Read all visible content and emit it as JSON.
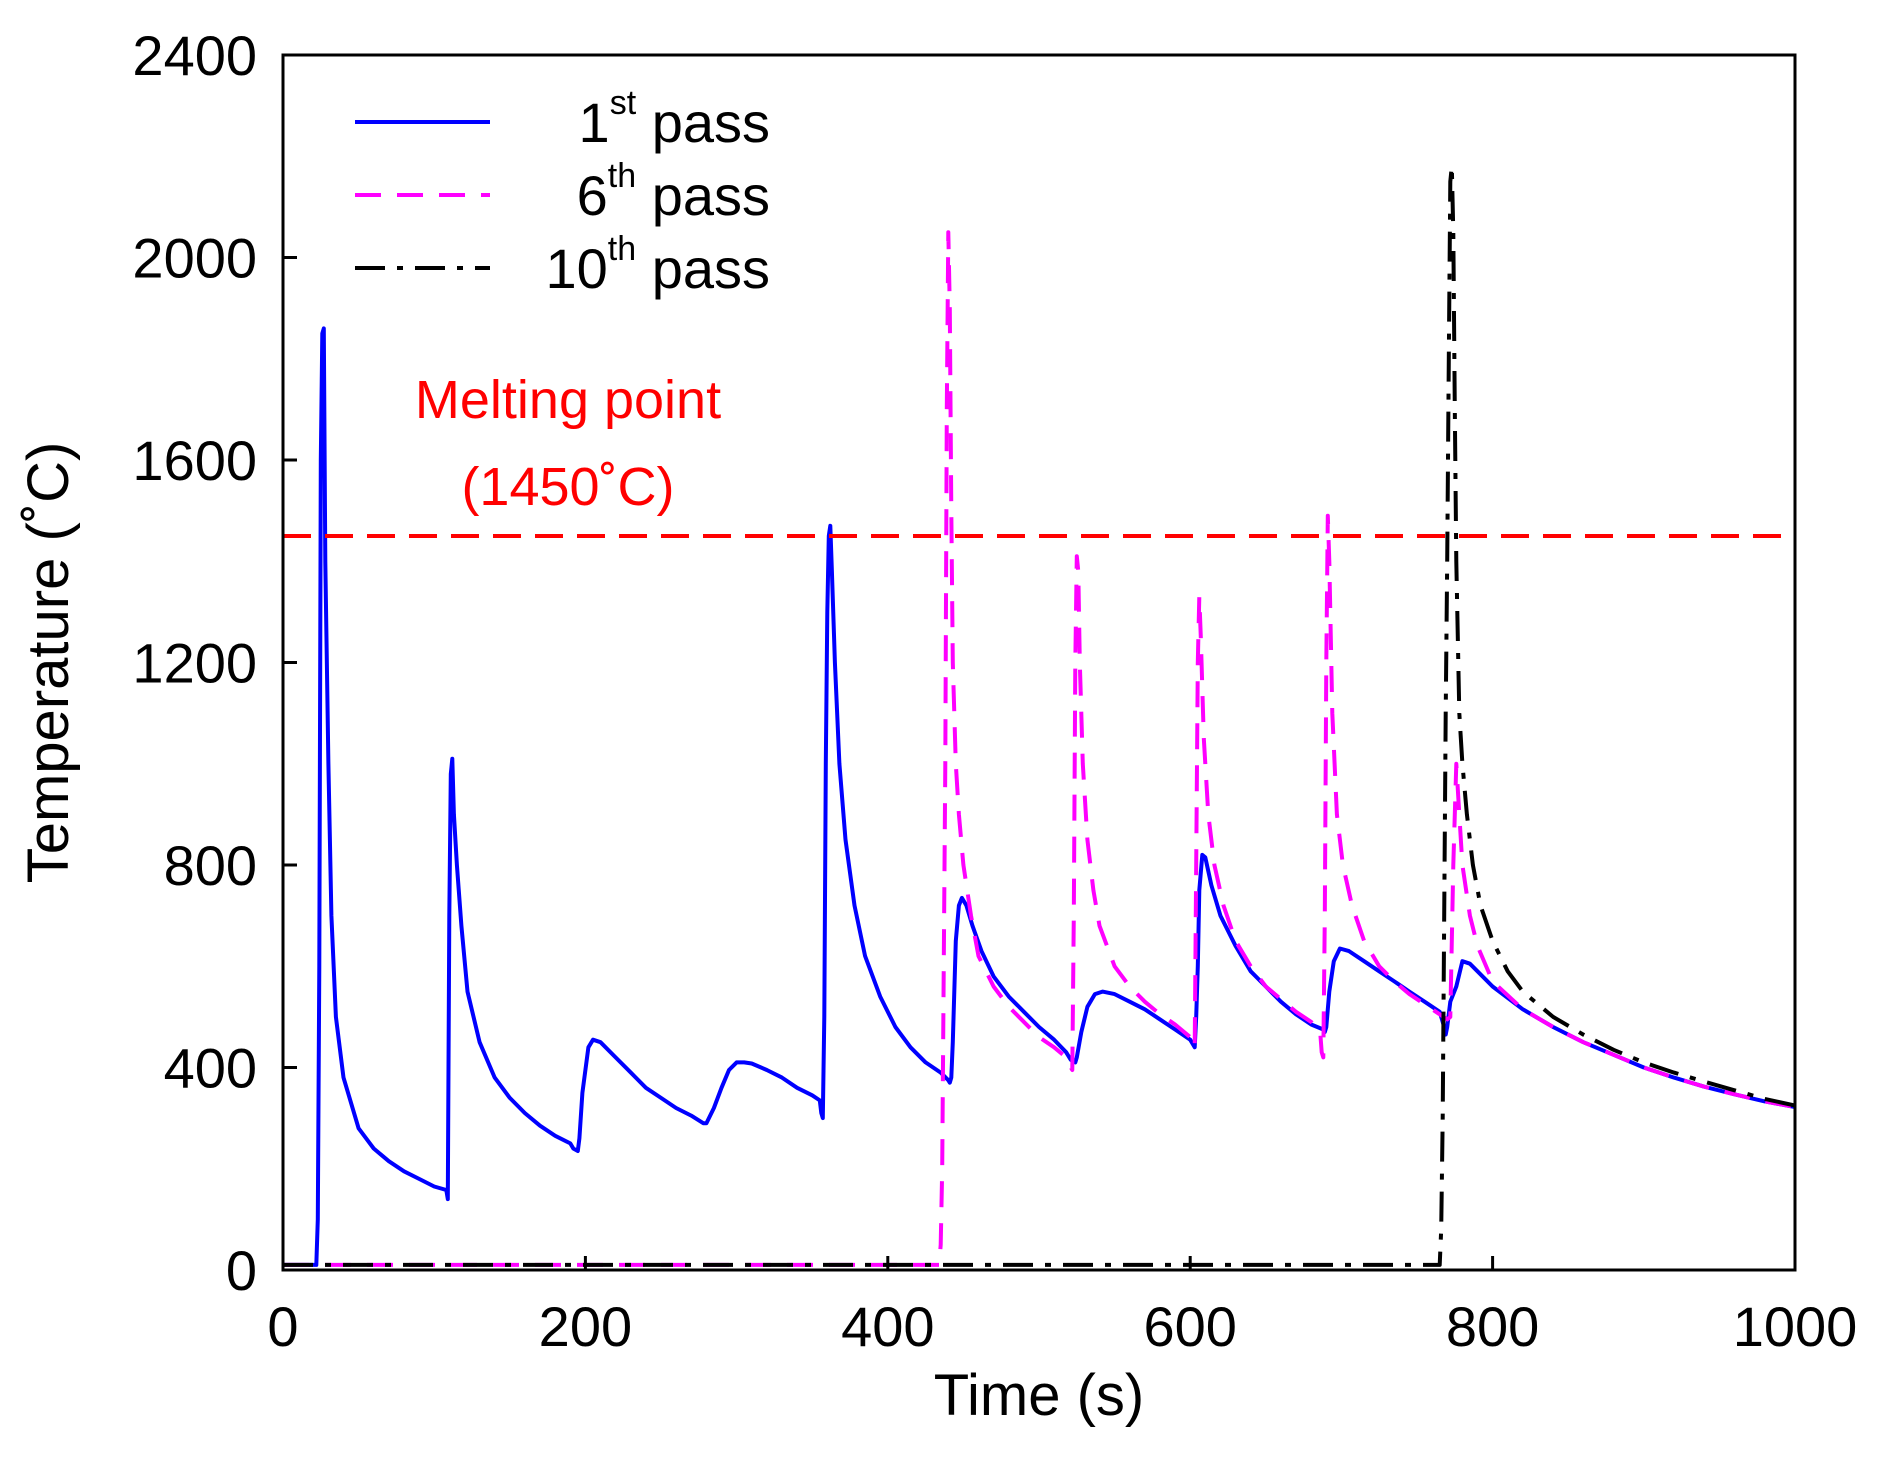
{
  "chart_data": {
    "type": "line",
    "title": "",
    "xlabel": "Time (s)",
    "ylabel": "Temperature (˚C)",
    "xlim": [
      0,
      1000
    ],
    "ylim": [
      0,
      2400
    ],
    "x_ticks": [
      0,
      200,
      400,
      600,
      800,
      1000
    ],
    "y_ticks": [
      0,
      400,
      800,
      1200,
      1600,
      2000,
      2400
    ],
    "grid": false,
    "legend_position": "top-left",
    "reference_line": {
      "y": 1450,
      "color": "#ff0000",
      "style": "dashed",
      "label_line1": "Melting point",
      "label_line2": "(1450˚C)"
    },
    "series": [
      {
        "name_base": "1",
        "name_sup": "st",
        "name_tail": " pass",
        "color": "#0000ff",
        "style": "solid",
        "points": [
          [
            0,
            10
          ],
          [
            22,
            10
          ],
          [
            23,
            100
          ],
          [
            24,
            600
          ],
          [
            25,
            1600
          ],
          [
            26,
            1850
          ],
          [
            27,
            1860
          ],
          [
            28,
            1400
          ],
          [
            30,
            1000
          ],
          [
            32,
            700
          ],
          [
            35,
            500
          ],
          [
            40,
            380
          ],
          [
            50,
            280
          ],
          [
            60,
            240
          ],
          [
            70,
            215
          ],
          [
            80,
            195
          ],
          [
            90,
            180
          ],
          [
            100,
            165
          ],
          [
            108,
            158
          ],
          [
            109,
            140
          ],
          [
            110,
            700
          ],
          [
            111,
            980
          ],
          [
            112,
            1010
          ],
          [
            113,
            900
          ],
          [
            115,
            800
          ],
          [
            118,
            680
          ],
          [
            122,
            550
          ],
          [
            130,
            450
          ],
          [
            140,
            380
          ],
          [
            150,
            340
          ],
          [
            160,
            310
          ],
          [
            170,
            285
          ],
          [
            180,
            265
          ],
          [
            190,
            250
          ],
          [
            192,
            240
          ],
          [
            195,
            235
          ],
          [
            196,
            260
          ],
          [
            198,
            350
          ],
          [
            202,
            440
          ],
          [
            205,
            455
          ],
          [
            210,
            450
          ],
          [
            220,
            420
          ],
          [
            230,
            390
          ],
          [
            240,
            360
          ],
          [
            250,
            340
          ],
          [
            260,
            320
          ],
          [
            270,
            305
          ],
          [
            278,
            290
          ],
          [
            280,
            290
          ],
          [
            285,
            320
          ],
          [
            290,
            360
          ],
          [
            295,
            395
          ],
          [
            300,
            410
          ],
          [
            305,
            410
          ],
          [
            310,
            408
          ],
          [
            320,
            395
          ],
          [
            330,
            380
          ],
          [
            340,
            360
          ],
          [
            350,
            345
          ],
          [
            355,
            335
          ],
          [
            356,
            310
          ],
          [
            357,
            300
          ],
          [
            358,
            500
          ],
          [
            359,
            1000
          ],
          [
            360,
            1300
          ],
          [
            361,
            1450
          ],
          [
            362,
            1470
          ],
          [
            363,
            1380
          ],
          [
            365,
            1200
          ],
          [
            368,
            1000
          ],
          [
            372,
            850
          ],
          [
            378,
            720
          ],
          [
            385,
            620
          ],
          [
            395,
            540
          ],
          [
            405,
            480
          ],
          [
            415,
            440
          ],
          [
            425,
            410
          ],
          [
            435,
            390
          ],
          [
            440,
            375
          ],
          [
            441,
            370
          ],
          [
            442,
            380
          ],
          [
            443,
            450
          ],
          [
            445,
            650
          ],
          [
            447,
            720
          ],
          [
            449,
            735
          ],
          [
            452,
            720
          ],
          [
            456,
            680
          ],
          [
            462,
            630
          ],
          [
            470,
            580
          ],
          [
            480,
            540
          ],
          [
            490,
            510
          ],
          [
            500,
            480
          ],
          [
            510,
            455
          ],
          [
            518,
            430
          ],
          [
            521,
            415
          ],
          [
            524,
            410
          ],
          [
            525,
            420
          ],
          [
            528,
            470
          ],
          [
            532,
            520
          ],
          [
            537,
            545
          ],
          [
            542,
            550
          ],
          [
            550,
            545
          ],
          [
            560,
            530
          ],
          [
            570,
            515
          ],
          [
            580,
            495
          ],
          [
            590,
            475
          ],
          [
            600,
            455
          ],
          [
            602,
            445
          ],
          [
            603,
            440
          ],
          [
            604,
            500
          ],
          [
            605,
            600
          ],
          [
            606,
            750
          ],
          [
            608,
            820
          ],
          [
            610,
            815
          ],
          [
            614,
            760
          ],
          [
            620,
            700
          ],
          [
            630,
            640
          ],
          [
            640,
            590
          ],
          [
            650,
            560
          ],
          [
            660,
            530
          ],
          [
            670,
            505
          ],
          [
            680,
            485
          ],
          [
            688,
            475
          ],
          [
            689,
            470
          ],
          [
            690,
            480
          ],
          [
            692,
            550
          ],
          [
            695,
            610
          ],
          [
            699,
            635
          ],
          [
            705,
            630
          ],
          [
            715,
            610
          ],
          [
            725,
            590
          ],
          [
            735,
            570
          ],
          [
            745,
            550
          ],
          [
            755,
            530
          ],
          [
            765,
            510
          ],
          [
            768,
            480
          ],
          [
            769,
            465
          ],
          [
            770,
            480
          ],
          [
            772,
            530
          ],
          [
            776,
            560
          ],
          [
            780,
            610
          ],
          [
            785,
            605
          ],
          [
            790,
            590
          ],
          [
            800,
            560
          ],
          [
            820,
            515
          ],
          [
            840,
            480
          ],
          [
            860,
            450
          ],
          [
            880,
            425
          ],
          [
            900,
            400
          ],
          [
            920,
            380
          ],
          [
            940,
            362
          ],
          [
            960,
            347
          ],
          [
            980,
            333
          ],
          [
            1000,
            322
          ]
        ]
      },
      {
        "name_base": "6",
        "name_sup": "th",
        "name_tail": " pass",
        "color": "#ff00ff",
        "style": "dashed",
        "points": [
          [
            0,
            10
          ],
          [
            434,
            10
          ],
          [
            435,
            50
          ],
          [
            436,
            200
          ],
          [
            438,
            1000
          ],
          [
            439,
            1700
          ],
          [
            440,
            2050
          ],
          [
            441,
            1900
          ],
          [
            442,
            1500
          ],
          [
            443,
            1200
          ],
          [
            445,
            1000
          ],
          [
            447,
            900
          ],
          [
            450,
            800
          ],
          [
            455,
            700
          ],
          [
            460,
            620
          ],
          [
            470,
            560
          ],
          [
            480,
            520
          ],
          [
            490,
            490
          ],
          [
            500,
            460
          ],
          [
            510,
            440
          ],
          [
            518,
            420
          ],
          [
            521,
            400
          ],
          [
            522,
            395
          ],
          [
            523,
            700
          ],
          [
            524,
            1200
          ],
          [
            525,
            1410
          ],
          [
            526,
            1380
          ],
          [
            527,
            1200
          ],
          [
            529,
            1000
          ],
          [
            532,
            850
          ],
          [
            536,
            750
          ],
          [
            540,
            680
          ],
          [
            550,
            600
          ],
          [
            560,
            560
          ],
          [
            570,
            530
          ],
          [
            580,
            505
          ],
          [
            590,
            485
          ],
          [
            600,
            460
          ],
          [
            602,
            450
          ],
          [
            603,
            440
          ],
          [
            604,
            800
          ],
          [
            605,
            1200
          ],
          [
            606,
            1330
          ],
          [
            607,
            1250
          ],
          [
            609,
            1050
          ],
          [
            612,
            900
          ],
          [
            616,
            800
          ],
          [
            622,
            720
          ],
          [
            630,
            650
          ],
          [
            640,
            600
          ],
          [
            650,
            560
          ],
          [
            660,
            535
          ],
          [
            670,
            510
          ],
          [
            680,
            490
          ],
          [
            686,
            470
          ],
          [
            687,
            430
          ],
          [
            688,
            420
          ],
          [
            689,
            700
          ],
          [
            690,
            1200
          ],
          [
            691,
            1490
          ],
          [
            692,
            1400
          ],
          [
            694,
            1100
          ],
          [
            697,
            900
          ],
          [
            701,
            800
          ],
          [
            707,
            720
          ],
          [
            715,
            650
          ],
          [
            725,
            600
          ],
          [
            735,
            570
          ],
          [
            745,
            545
          ],
          [
            755,
            525
          ],
          [
            765,
            505
          ],
          [
            770,
            495
          ],
          [
            772,
            500
          ],
          [
            774,
            800
          ],
          [
            776,
            1000
          ],
          [
            778,
            900
          ],
          [
            780,
            800
          ],
          [
            785,
            700
          ],
          [
            790,
            640
          ],
          [
            800,
            570
          ],
          [
            820,
            515
          ],
          [
            840,
            480
          ],
          [
            860,
            450
          ],
          [
            880,
            425
          ],
          [
            900,
            400
          ],
          [
            920,
            380
          ],
          [
            940,
            362
          ],
          [
            960,
            347
          ],
          [
            980,
            333
          ],
          [
            1000,
            322
          ]
        ]
      },
      {
        "name_base": "10",
        "name_sup": "th",
        "name_tail": " pass",
        "color": "#000000",
        "style": "dashdot",
        "points": [
          [
            0,
            10
          ],
          [
            765,
            10
          ],
          [
            766,
            80
          ],
          [
            767,
            300
          ],
          [
            768,
            700
          ],
          [
            769,
            1100
          ],
          [
            770,
            1400
          ],
          [
            771,
            1800
          ],
          [
            772,
            2150
          ],
          [
            773,
            2180
          ],
          [
            774,
            2050
          ],
          [
            775,
            1700
          ],
          [
            776,
            1400
          ],
          [
            777,
            1250
          ],
          [
            778,
            1100
          ],
          [
            780,
            1000
          ],
          [
            783,
            900
          ],
          [
            787,
            800
          ],
          [
            792,
            720
          ],
          [
            800,
            650
          ],
          [
            810,
            590
          ],
          [
            820,
            550
          ],
          [
            840,
            500
          ],
          [
            860,
            465
          ],
          [
            880,
            435
          ],
          [
            900,
            410
          ],
          [
            920,
            390
          ],
          [
            940,
            372
          ],
          [
            960,
            355
          ],
          [
            980,
            338
          ],
          [
            1000,
            325
          ]
        ]
      }
    ]
  }
}
